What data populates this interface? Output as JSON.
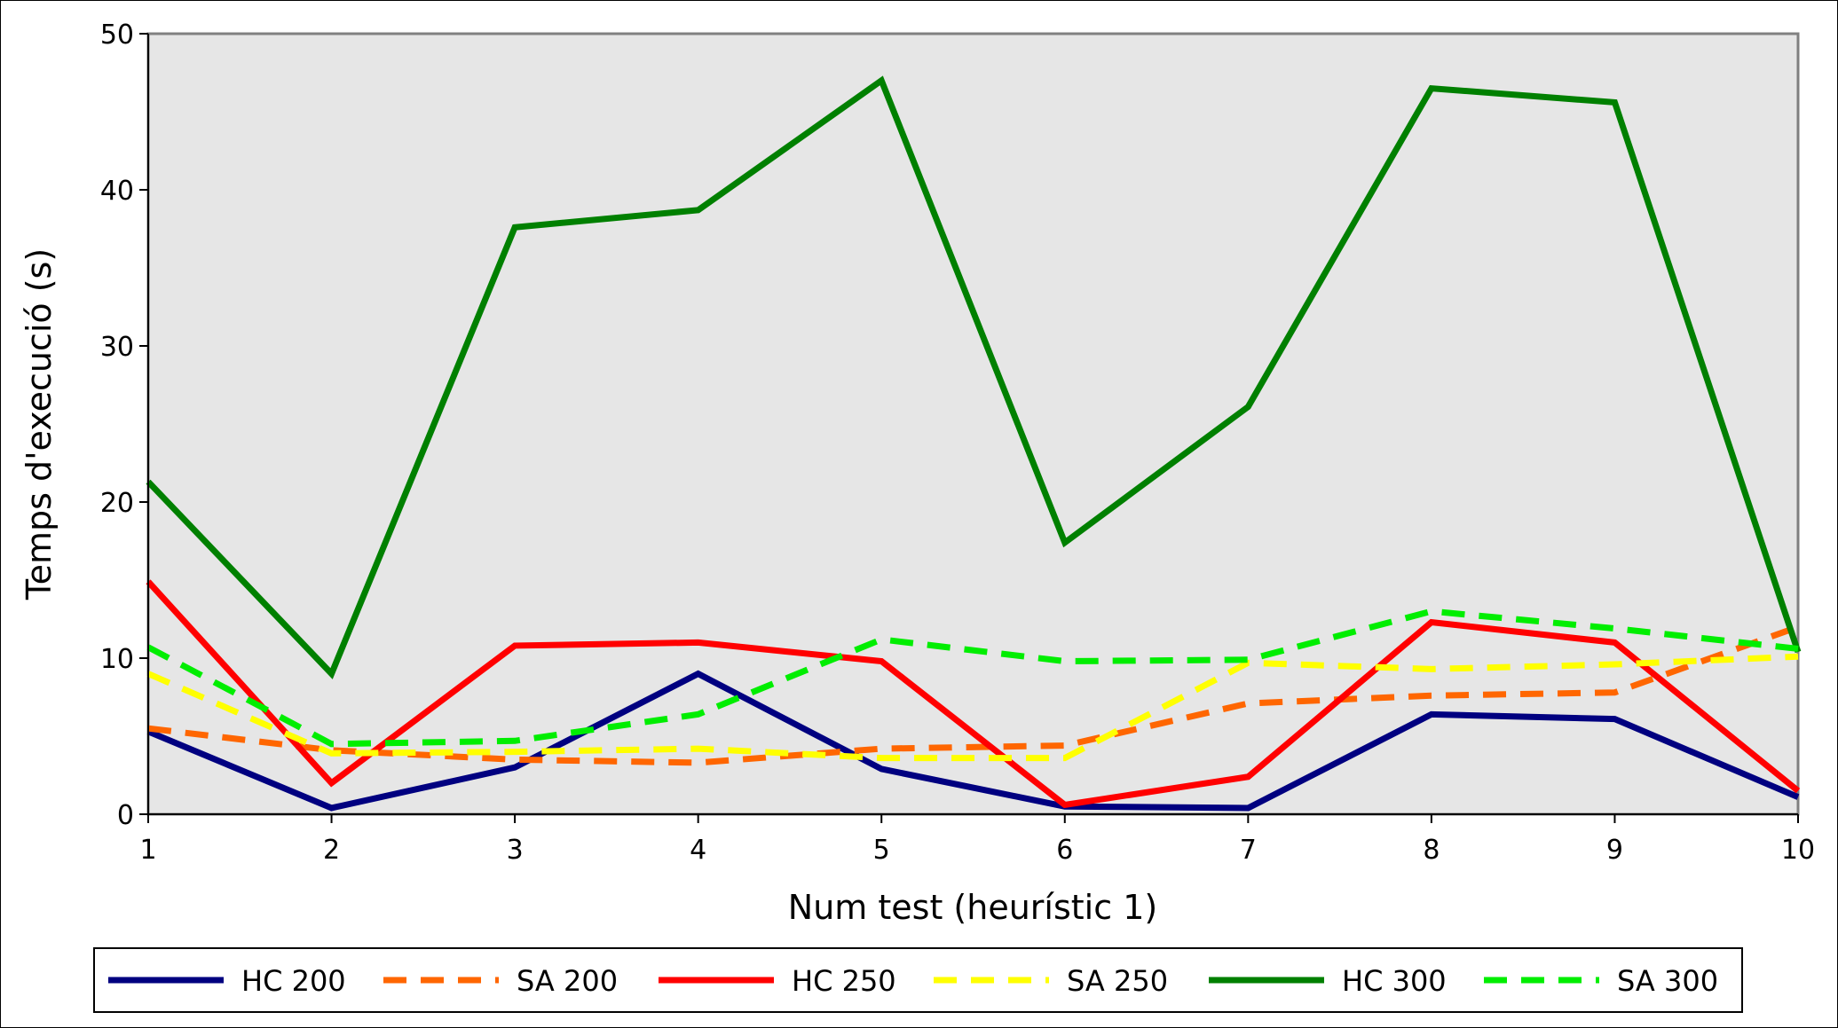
{
  "chart_data": {
    "type": "line",
    "xlabel": "Num test (heurístic 1)",
    "ylabel": "Temps d'execució (s)",
    "x": [
      1,
      2,
      3,
      4,
      5,
      6,
      7,
      8,
      9,
      10
    ],
    "xlim": [
      1,
      10
    ],
    "ylim": [
      0,
      50
    ],
    "yticks": [
      0,
      10,
      20,
      30,
      40,
      50
    ],
    "xticks": [
      1,
      2,
      3,
      4,
      5,
      6,
      7,
      8,
      9,
      10
    ],
    "grid": false,
    "plot_background": "#e6e6e6",
    "legend_position": "bottom",
    "series": [
      {
        "name": "HC 200",
        "color": "#000080",
        "style": "solid",
        "values": [
          5.3,
          0.4,
          3.0,
          9.0,
          2.9,
          0.5,
          0.4,
          6.4,
          6.1,
          1.1
        ]
      },
      {
        "name": "SA 200",
        "color": "#ff6600",
        "style": "dashed",
        "values": [
          5.5,
          4.1,
          3.5,
          3.3,
          4.2,
          4.4,
          7.1,
          7.6,
          7.8,
          12.0
        ]
      },
      {
        "name": "HC 250",
        "color": "#ff0000",
        "style": "solid",
        "values": [
          14.9,
          2.0,
          10.8,
          11.0,
          9.8,
          0.6,
          2.4,
          12.3,
          11.0,
          1.5
        ]
      },
      {
        "name": "SA 250",
        "color": "#ffff00",
        "style": "dashed",
        "values": [
          9.0,
          3.9,
          4.0,
          4.2,
          3.6,
          3.6,
          9.7,
          9.3,
          9.6,
          10.1
        ]
      },
      {
        "name": "HC 300",
        "color": "#008000",
        "style": "solid",
        "values": [
          21.3,
          9.0,
          37.6,
          38.7,
          47.0,
          17.4,
          26.1,
          46.5,
          45.6,
          10.4
        ]
      },
      {
        "name": "SA 300",
        "color": "#00ee00",
        "style": "dashed",
        "values": [
          10.7,
          4.5,
          4.7,
          6.4,
          11.2,
          9.8,
          9.9,
          13.0,
          11.9,
          10.6
        ]
      }
    ]
  }
}
